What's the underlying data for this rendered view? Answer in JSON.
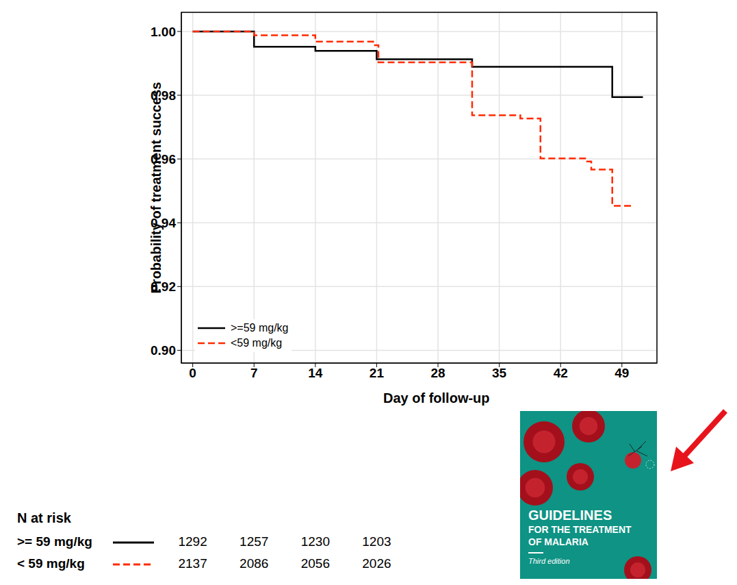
{
  "chart_data": {
    "type": "step",
    "x_label": "Day of follow-up",
    "y_label": "Probability of treatment success",
    "xlim": [
      -1.3,
      53
    ],
    "xticks": [
      0,
      7,
      14,
      21,
      28,
      35,
      42,
      49
    ],
    "ylim": [
      0.896,
      1.006
    ],
    "yticks": [
      {
        "value": 1,
        "label": "1.00"
      },
      0.98,
      0.96,
      0.94,
      0.92,
      {
        "value": 0.9,
        "label": "0.90"
      }
    ],
    "grid": true,
    "legend": "lower left",
    "series": [
      {
        "name": ">=59 mg/kg",
        "color": "#000000",
        "line_style": "solid",
        "x": [
          0,
          7,
          14,
          21,
          31.9,
          47.9,
          51.4
        ],
        "values": [
          1,
          0.9952,
          0.9939,
          0.9913,
          0.9889,
          0.9794,
          0.9794
        ]
      },
      {
        "name": "<59 mg/kg",
        "color": "#ff2a00",
        "line_style": "dashed",
        "x": [
          0,
          7,
          14,
          20.6,
          21.2,
          31.9,
          37.4,
          39.7,
          44.8,
          45.5,
          47.9,
          50.3
        ],
        "values": [
          1,
          0.9988,
          0.9968,
          0.9957,
          0.9903,
          0.9737,
          0.9727,
          0.9602,
          0.9592,
          0.9567,
          0.9453,
          0.9453
        ]
      }
    ],
    "risk_table": {
      "title": "N at risk",
      "days": [
        0,
        7,
        14,
        21
      ],
      "rows": [
        {
          "name": ">= 59 mg/kg",
          "color": "#000000",
          "line_style": "solid",
          "values": [
            1292,
            1257,
            1230,
            1203
          ]
        },
        {
          "name": "< 59 mg/kg",
          "color": "#ff2a00",
          "line_style": "dashed",
          "values": [
            2137,
            2086,
            2056,
            2026
          ]
        }
      ]
    },
    "cover": {
      "title_lines": [
        "GUIDELINES",
        "FOR THE TREATMENT",
        "OF MALARIA"
      ],
      "edition": "Third edition"
    }
  }
}
